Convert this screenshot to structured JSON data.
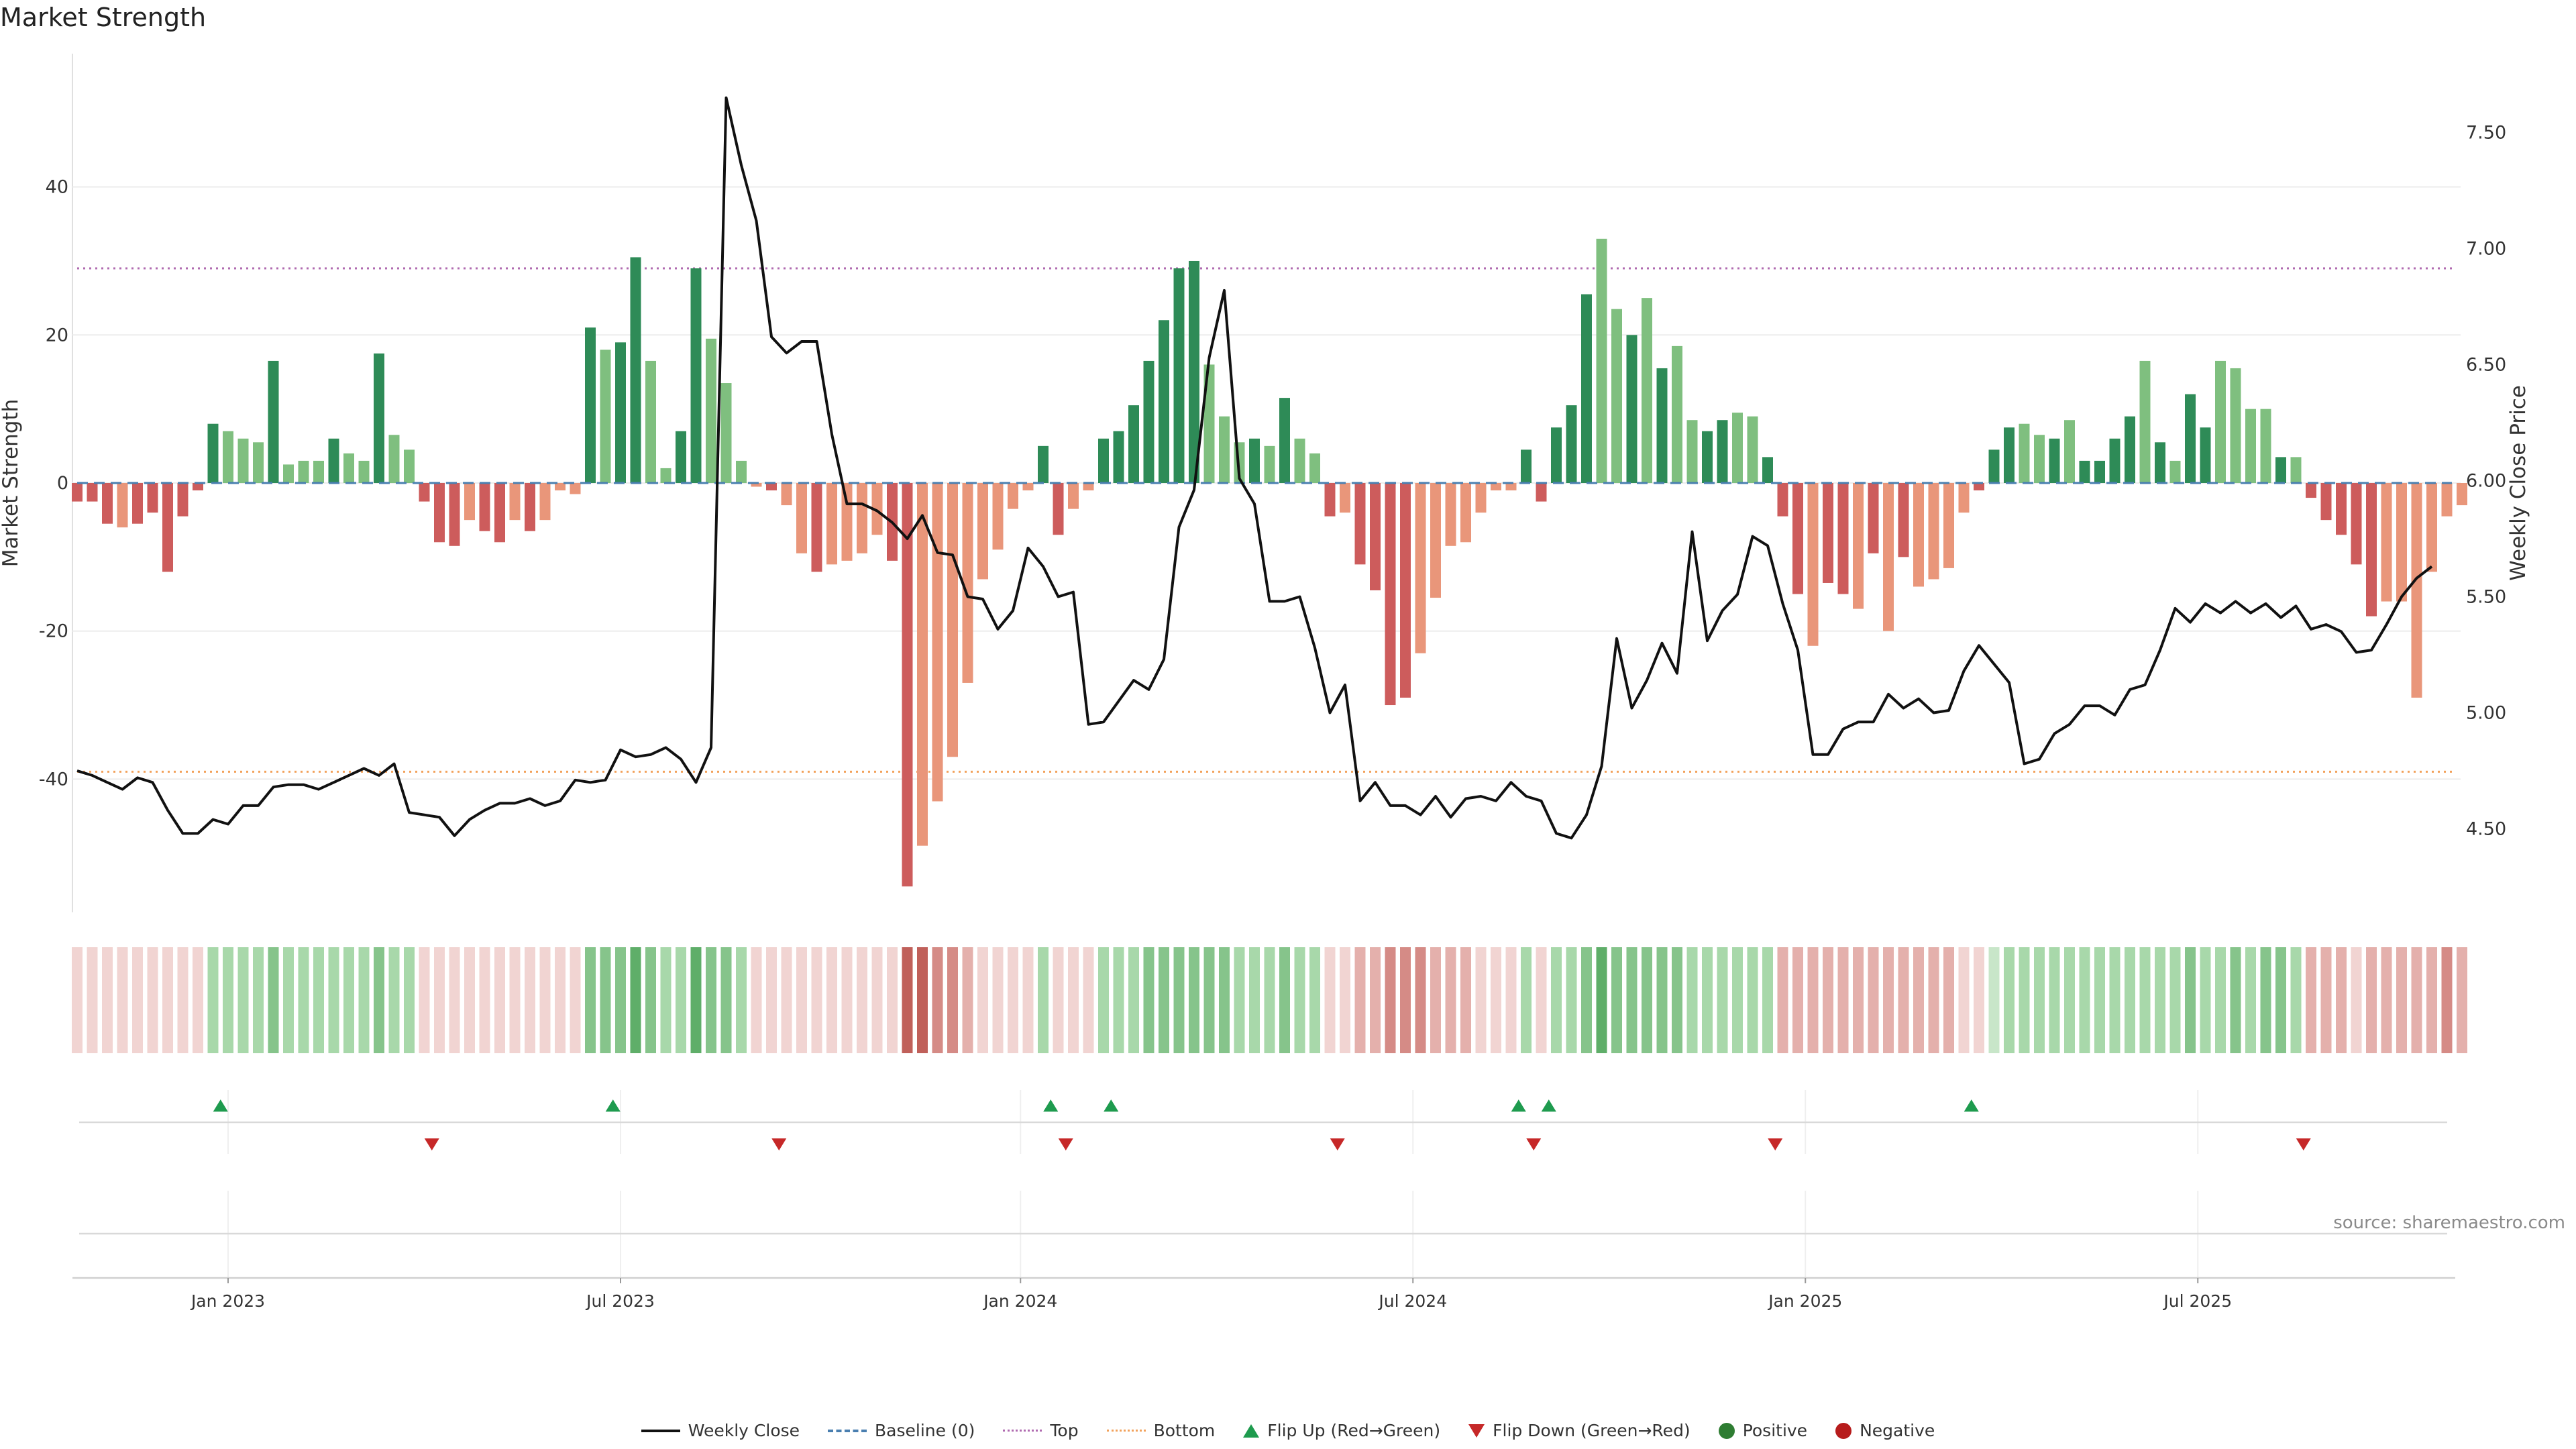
{
  "chart_data": {
    "type": "bar",
    "title": "Market Strength",
    "ylabel_left": "Market Strength",
    "ylabel_right": "Weekly Close Price",
    "source": "source: sharemaestro.com",
    "ylim_left": [
      -58,
      58
    ],
    "ylim_right": [
      4.14,
      7.84
    ],
    "yticks_left": [
      40,
      20,
      0,
      -20,
      -40
    ],
    "yticks_right": [
      "7.50",
      "7.00",
      "6.50",
      "6.00",
      "5.50",
      "5.00",
      "4.50"
    ],
    "top_line": 29,
    "bottom_line": -39,
    "x_ticks": [
      {
        "label": "Jan 2023",
        "week": 10
      },
      {
        "label": "Jul 2023",
        "week": 36
      },
      {
        "label": "Jan 2024",
        "week": 62.5
      },
      {
        "label": "Jul 2024",
        "week": 88.5
      },
      {
        "label": "Jan 2025",
        "week": 114.5
      },
      {
        "label": "Jul 2025",
        "week": 140.5
      }
    ],
    "strength": [
      -2.5,
      -2.5,
      -5.5,
      -6,
      -5.5,
      -4,
      -12,
      -4.5,
      -1,
      8,
      7,
      6,
      5.5,
      16.5,
      2.5,
      3,
      3,
      6,
      4,
      3,
      17.5,
      6.5,
      4.5,
      -2.5,
      -8,
      -8.5,
      -5,
      -6.5,
      -8,
      -5,
      -6.5,
      -5,
      -1,
      -1.5,
      21,
      18,
      19,
      30.5,
      16.5,
      2,
      7,
      29,
      19.5,
      13.5,
      3,
      -0.5,
      -1,
      -3,
      -9.5,
      -12,
      -11,
      -10.5,
      -9.5,
      -7,
      -10.5,
      -54.5,
      -49,
      -43,
      -37,
      -27,
      -13,
      -9,
      -3.5,
      -1,
      5,
      -7,
      -3.5,
      -1,
      6,
      7,
      10.5,
      16.5,
      22,
      29,
      30,
      16,
      9,
      5.5,
      6,
      5,
      11.5,
      6,
      4,
      -4.5,
      -4,
      -11,
      -14.5,
      -30,
      -29,
      -23,
      -15.5,
      -8.5,
      -8,
      -4,
      -1,
      -1,
      4.5,
      -2.5,
      7.5,
      10.5,
      25.5,
      33,
      23.5,
      20,
      25,
      15.5,
      18.5,
      8.5,
      7,
      8.5,
      9.5,
      9,
      3.5,
      -4.5,
      -15,
      -22,
      -13.5,
      -15,
      -17,
      -9.5,
      -20,
      -10,
      -14,
      -13,
      -11.5,
      -4,
      -1,
      4.5,
      7.5,
      8,
      6.5,
      6,
      8.5,
      3,
      3,
      6,
      9,
      16.5,
      5.5,
      3,
      12,
      7.5,
      16.5,
      15.5,
      10,
      10,
      3.5,
      3.5,
      -2,
      -5,
      -7,
      -11,
      -18,
      -16,
      -16,
      -29,
      -12,
      -4.5,
      -3
    ],
    "tones": [
      1,
      1,
      1,
      0,
      1,
      1,
      1,
      1,
      1,
      1,
      0,
      0,
      0,
      1,
      0,
      0,
      0,
      1,
      0,
      0,
      1,
      0,
      0,
      1,
      1,
      1,
      0,
      1,
      1,
      0,
      1,
      0,
      0,
      0,
      1,
      0,
      1,
      1,
      0,
      0,
      1,
      1,
      0,
      0,
      0,
      0,
      1,
      0,
      0,
      1,
      0,
      0,
      0,
      0,
      1,
      1,
      0,
      0,
      0,
      0,
      0,
      0,
      0,
      0,
      1,
      1,
      0,
      0,
      1,
      1,
      1,
      1,
      1,
      1,
      1,
      0,
      0,
      0,
      1,
      0,
      1,
      0,
      0,
      1,
      0,
      1,
      1,
      1,
      1,
      0,
      0,
      0,
      0,
      0,
      0,
      0,
      1,
      1,
      1,
      1,
      1,
      0,
      0,
      1,
      0,
      1,
      0,
      0,
      1,
      1,
      0,
      0,
      1,
      1,
      1,
      0,
      1,
      1,
      0,
      1,
      0,
      1,
      0,
      0,
      0,
      0,
      1,
      1,
      1,
      0,
      0,
      1,
      0,
      1,
      1,
      1,
      1,
      0,
      1,
      0,
      1,
      1,
      0,
      0,
      0,
      0,
      1,
      0,
      1,
      1,
      1,
      1,
      1,
      0,
      0
    ],
    "weekly_close": [
      4.75,
      4.73,
      4.7,
      4.67,
      4.72,
      4.7,
      4.58,
      4.48,
      4.48,
      4.54,
      4.52,
      4.6,
      4.6,
      4.68,
      4.69,
      4.69,
      4.67,
      4.7,
      4.73,
      4.76,
      4.73,
      4.78,
      4.57,
      4.56,
      4.55,
      4.47,
      4.54,
      4.58,
      4.61,
      4.61,
      4.63,
      4.6,
      4.62,
      4.71,
      4.7,
      4.71,
      4.84,
      4.81,
      4.82,
      4.85,
      4.8,
      4.7,
      4.85,
      7.65,
      7.36,
      7.12,
      6.62,
      6.55,
      6.6,
      6.6,
      6.2,
      5.9,
      5.9,
      5.87,
      5.82,
      5.75,
      5.85,
      5.69,
      5.68,
      5.5,
      5.49,
      5.36,
      5.44,
      5.71,
      5.63,
      5.5,
      5.52,
      4.95,
      4.96,
      5.05,
      5.14,
      5.1,
      5.23,
      5.8,
      5.96,
      6.53,
      6.82,
      6.01,
      5.9,
      5.48,
      5.48,
      5.5,
      5.28,
      5.0,
      5.12,
      4.62,
      4.7,
      4.6,
      4.6,
      4.56,
      4.64,
      4.55,
      4.63,
      4.64,
      4.62,
      4.7,
      4.64,
      4.62,
      4.48,
      4.46,
      4.56,
      4.77,
      5.32,
      5.02,
      5.14,
      5.3,
      5.17,
      5.78,
      5.31,
      5.44,
      5.51,
      5.76,
      5.72,
      5.47,
      5.27,
      4.82,
      4.82,
      4.93,
      4.96,
      4.96,
      5.08,
      5.02,
      5.06,
      5.0,
      5.01,
      5.18,
      5.29,
      5.21,
      5.13,
      4.78,
      4.8,
      4.91,
      4.95,
      5.03,
      5.03,
      4.99,
      5.1,
      5.12,
      5.27,
      5.45,
      5.39,
      5.47,
      5.43,
      5.48,
      5.43,
      5.47,
      5.41,
      5.46,
      5.36,
      5.38,
      5.35,
      5.26,
      5.27,
      5.38,
      5.5,
      5.58,
      5.63
    ],
    "heat_levels": [
      1,
      1,
      1,
      1,
      1,
      1,
      1,
      1,
      1,
      2,
      2,
      2,
      2,
      3,
      2,
      2,
      2,
      2,
      2,
      2,
      3,
      2,
      2,
      1,
      1,
      1,
      1,
      1,
      1,
      1,
      1,
      1,
      1,
      1,
      3,
      3,
      3,
      4,
      3,
      2,
      2,
      4,
      3,
      3,
      2,
      1,
      1,
      1,
      1,
      1,
      1,
      1,
      1,
      1,
      1,
      4,
      4,
      3,
      3,
      2,
      1,
      1,
      1,
      1,
      2,
      1,
      1,
      1,
      2,
      2,
      2,
      3,
      3,
      3,
      3,
      3,
      3,
      2,
      2,
      2,
      3,
      2,
      2,
      1,
      1,
      2,
      2,
      3,
      3,
      3,
      2,
      2,
      2,
      1,
      1,
      1,
      2,
      1,
      2,
      2,
      3,
      4,
      3,
      3,
      3,
      3,
      3,
      2,
      2,
      2,
      2,
      2,
      2,
      2,
      2,
      2,
      2,
      2,
      2,
      2,
      2,
      2,
      2,
      2,
      2,
      1,
      1,
      1,
      2,
      2,
      2,
      2,
      2,
      2,
      2,
      2,
      2,
      2,
      2,
      2,
      3,
      2,
      2,
      3,
      2,
      3,
      3,
      2,
      2,
      2,
      2,
      1,
      2,
      2,
      2,
      2,
      2,
      3,
      2,
      1
    ],
    "flip_up_weeks": [
      9.5,
      35.5,
      64.5,
      68.5,
      95.5,
      97.5,
      125.5
    ],
    "flip_down_weeks": [
      23.5,
      46.5,
      65.5,
      83.5,
      96.5,
      112.5,
      147.5
    ],
    "legend": [
      "Weekly Close",
      "Baseline (0)",
      "Top",
      "Bottom",
      "Flip Up (Red→Green)",
      "Flip Down (Green→Red)",
      "Positive",
      "Negative"
    ],
    "colors": {
      "pos_dark": "#2e8b57",
      "pos_light": "#7fbf7f",
      "neg_dark": "#cd5c5c",
      "neg_light": "#e9967a",
      "price": "#111111",
      "baseline": "#4a7fb0",
      "top": "#b06bb0",
      "bottom": "#f2a25c",
      "flip_up": "#1e9b4e",
      "flip_down": "#c62828",
      "positive_dot": "#2e7d32",
      "negative_dot": "#b71c1c"
    }
  }
}
